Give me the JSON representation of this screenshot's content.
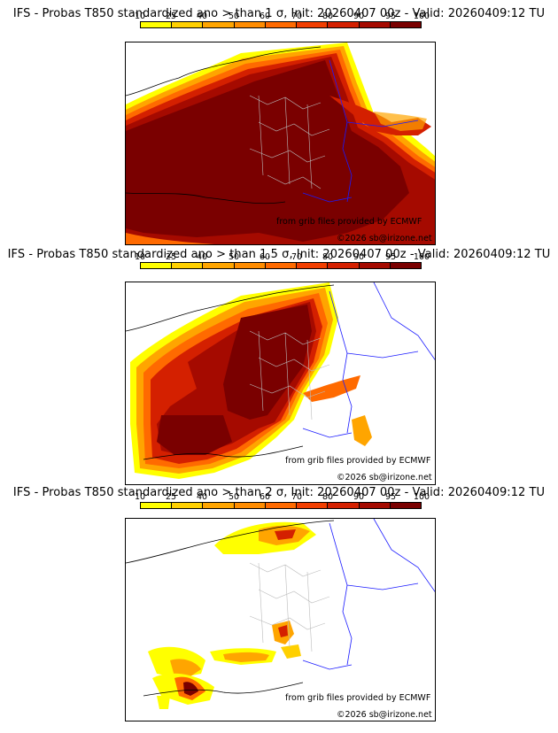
{
  "colorbar": {
    "ticks": [
      "10",
      "25",
      "40",
      "50",
      "60",
      "70",
      "80",
      "90",
      "95",
      "100"
    ],
    "colors": [
      "#ffff00",
      "#ffd000",
      "#ffa500",
      "#ff8c00",
      "#ff6a00",
      "#f23e00",
      "#d42000",
      "#a50a00",
      "#7a0000",
      "#520000"
    ]
  },
  "panels": [
    {
      "title": "IFS - Probas T850  standardized ano > than 1 σ, Init: 20260407 00z - Valid: 20260409:12 TU",
      "credit": "from grib files provided by ECMWF",
      "copyright": "©2026 sb@irizone.net"
    },
    {
      "title": "IFS - Probas T850  standardized ano > than 1.5 σ, Init: 20260407 00z - Valid: 20260409:12 TU",
      "credit": "from grib files provided by ECMWF",
      "copyright": "©2026 sb@irizone.net"
    },
    {
      "title": "IFS - Probas T850  standardized ano > than 2 σ, Init: 20260407 00z - Valid: 20260409:12 TU",
      "credit": "from grib files provided by ECMWF",
      "copyright": "©2026 sb@irizone.net"
    }
  ]
}
